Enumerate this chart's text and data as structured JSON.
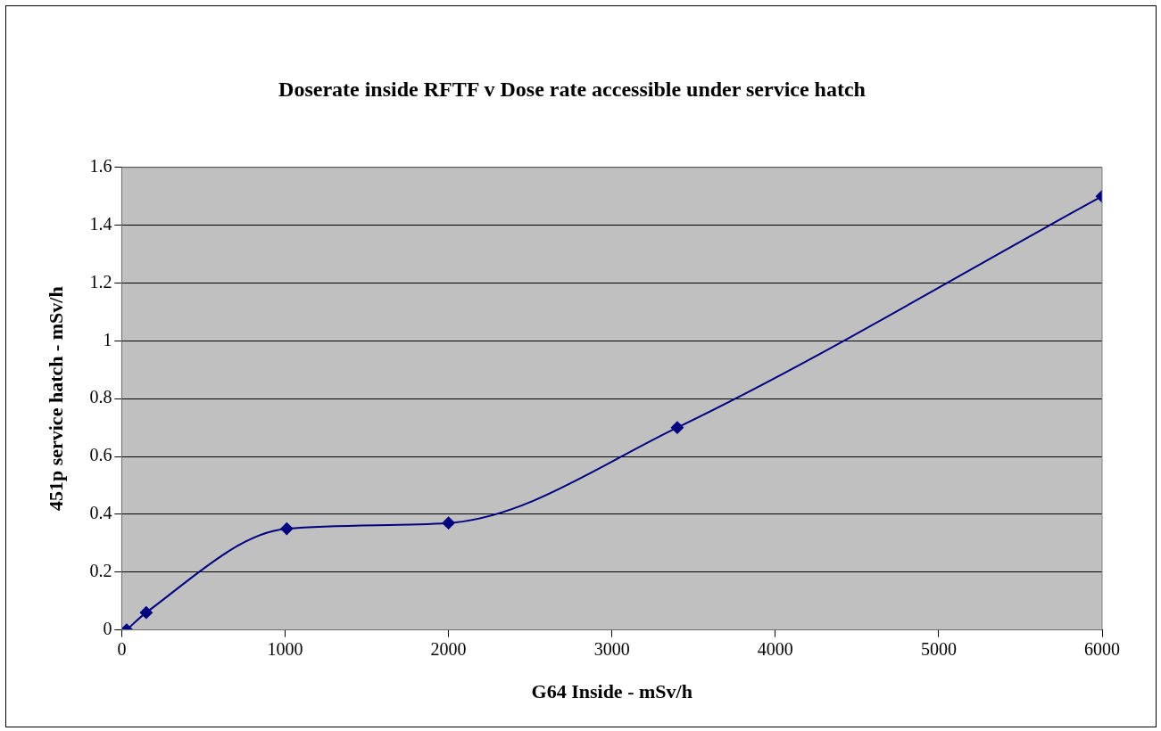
{
  "chart_data": {
    "type": "line",
    "title": "Doserate inside RFTF v Dose rate accessible under service hatch",
    "xlabel": "G64 Inside - mSv/h",
    "ylabel": "451p service hatch - mSv/h",
    "x": [
      30,
      150,
      1010,
      2000,
      3400,
      6000
    ],
    "series": [
      {
        "color": "#000080",
        "values": [
          0,
          0.06,
          0.35,
          0.37,
          0.7,
          1.5
        ]
      }
    ],
    "xlim": [
      0,
      6000
    ],
    "xticks": [
      0,
      1000,
      2000,
      3000,
      4000,
      5000,
      6000
    ],
    "ylim": [
      0,
      1.6
    ],
    "yticks": [
      0,
      0.2,
      0.4,
      0.6,
      0.8,
      1,
      1.2,
      1.4,
      1.6
    ],
    "grid": "y",
    "legend": false,
    "marker": "diamond",
    "line_style": "solid"
  }
}
